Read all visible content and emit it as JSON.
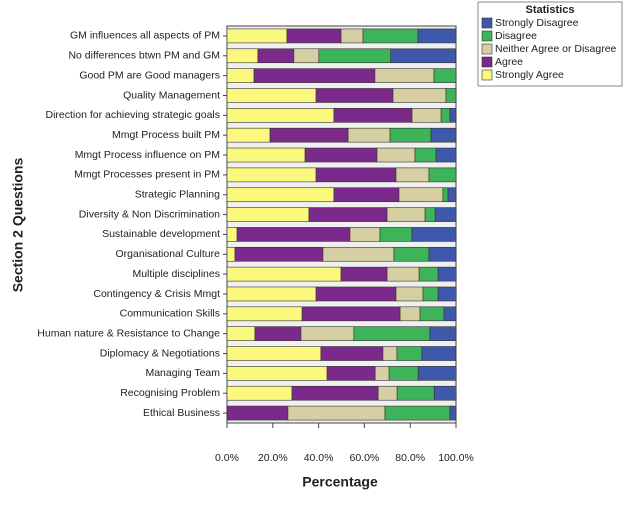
{
  "chart_data": {
    "type": "stacked_barh",
    "categories": [
      "GM influences all aspects of PM",
      "No differences btwn PM and GM",
      "Good PM are Good managers",
      "Quality Management",
      "Direction for achieving strategic goals",
      "Mmgt Process built PM",
      "Mmgt Process influence on PM",
      "Mmgt Processes present in PM",
      "Strategic Planning",
      "Diversity & Non Discrimination",
      "Sustainable development",
      "Organisational Culture",
      "Multiple disciplines",
      "Contingency & Crisis Mmgt",
      "Communication Skills",
      "Human nature & Resistance to Change",
      "Diplomacy & Negotiations",
      "Managing Team",
      "Recognising Problem",
      "Ethical Business"
    ],
    "series": [
      {
        "name": "Strongly Disagree",
        "color": "#3e58ac",
        "values": [
          16.6,
          28.4,
          0,
          0,
          2.6,
          10.9,
          8.7,
          0,
          3.5,
          9.1,
          19.2,
          11.8,
          7.9,
          7.9,
          5.2,
          11.4,
          14.8,
          16.6,
          9.6,
          2.6
        ]
      },
      {
        "name": "Disagree",
        "color": "#3db35a",
        "values": [
          24.0,
          31.4,
          9.6,
          4.4,
          3.9,
          17.9,
          9.2,
          11.8,
          2.2,
          4.4,
          14.0,
          15.3,
          8.3,
          6.6,
          10.5,
          33.2,
          10.9,
          12.7,
          16.2,
          28.4
        ]
      },
      {
        "name": "Neither Agree or Disagree",
        "color": "#d6cfa4",
        "values": [
          9.6,
          10.9,
          25.8,
          23.1,
          12.7,
          18.3,
          16.6,
          14.4,
          19.2,
          16.6,
          13.1,
          31.0,
          14.0,
          11.8,
          8.7,
          23.1,
          6.1,
          6.1,
          8.3,
          42.4
        ]
      },
      {
        "name": "Agree",
        "color": "#7b2a8c",
        "values": [
          23.6,
          15.7,
          52.8,
          33.6,
          34.1,
          34.1,
          31.4,
          34.9,
          28.4,
          34.1,
          49.3,
          38.4,
          20.1,
          34.9,
          42.8,
          20.1,
          27.1,
          21.0,
          37.6,
          26.6
        ]
      },
      {
        "name": "Strongly Agree",
        "color": "#fbf87e",
        "values": [
          26.2,
          13.5,
          11.8,
          38.9,
          46.7,
          18.8,
          34.1,
          38.9,
          46.7,
          35.8,
          4.4,
          3.5,
          49.8,
          38.9,
          32.8,
          12.2,
          41.0,
          43.7,
          28.4,
          0
        ]
      }
    ],
    "xlabel": "Percentage",
    "ylabel": "Section 2 Questions",
    "legend_title": "Statistics",
    "xlim": [
      0,
      100
    ],
    "xticks": [
      {
        "value": 0,
        "label": "0.0%"
      },
      {
        "value": 20,
        "label": "20.0%"
      },
      {
        "value": 40,
        "label": "40.0%"
      },
      {
        "value": 60,
        "label": "60.0%"
      },
      {
        "value": 80,
        "label": "80.0%"
      },
      {
        "value": 100,
        "label": "100.0%"
      }
    ],
    "legend": "upper right"
  }
}
